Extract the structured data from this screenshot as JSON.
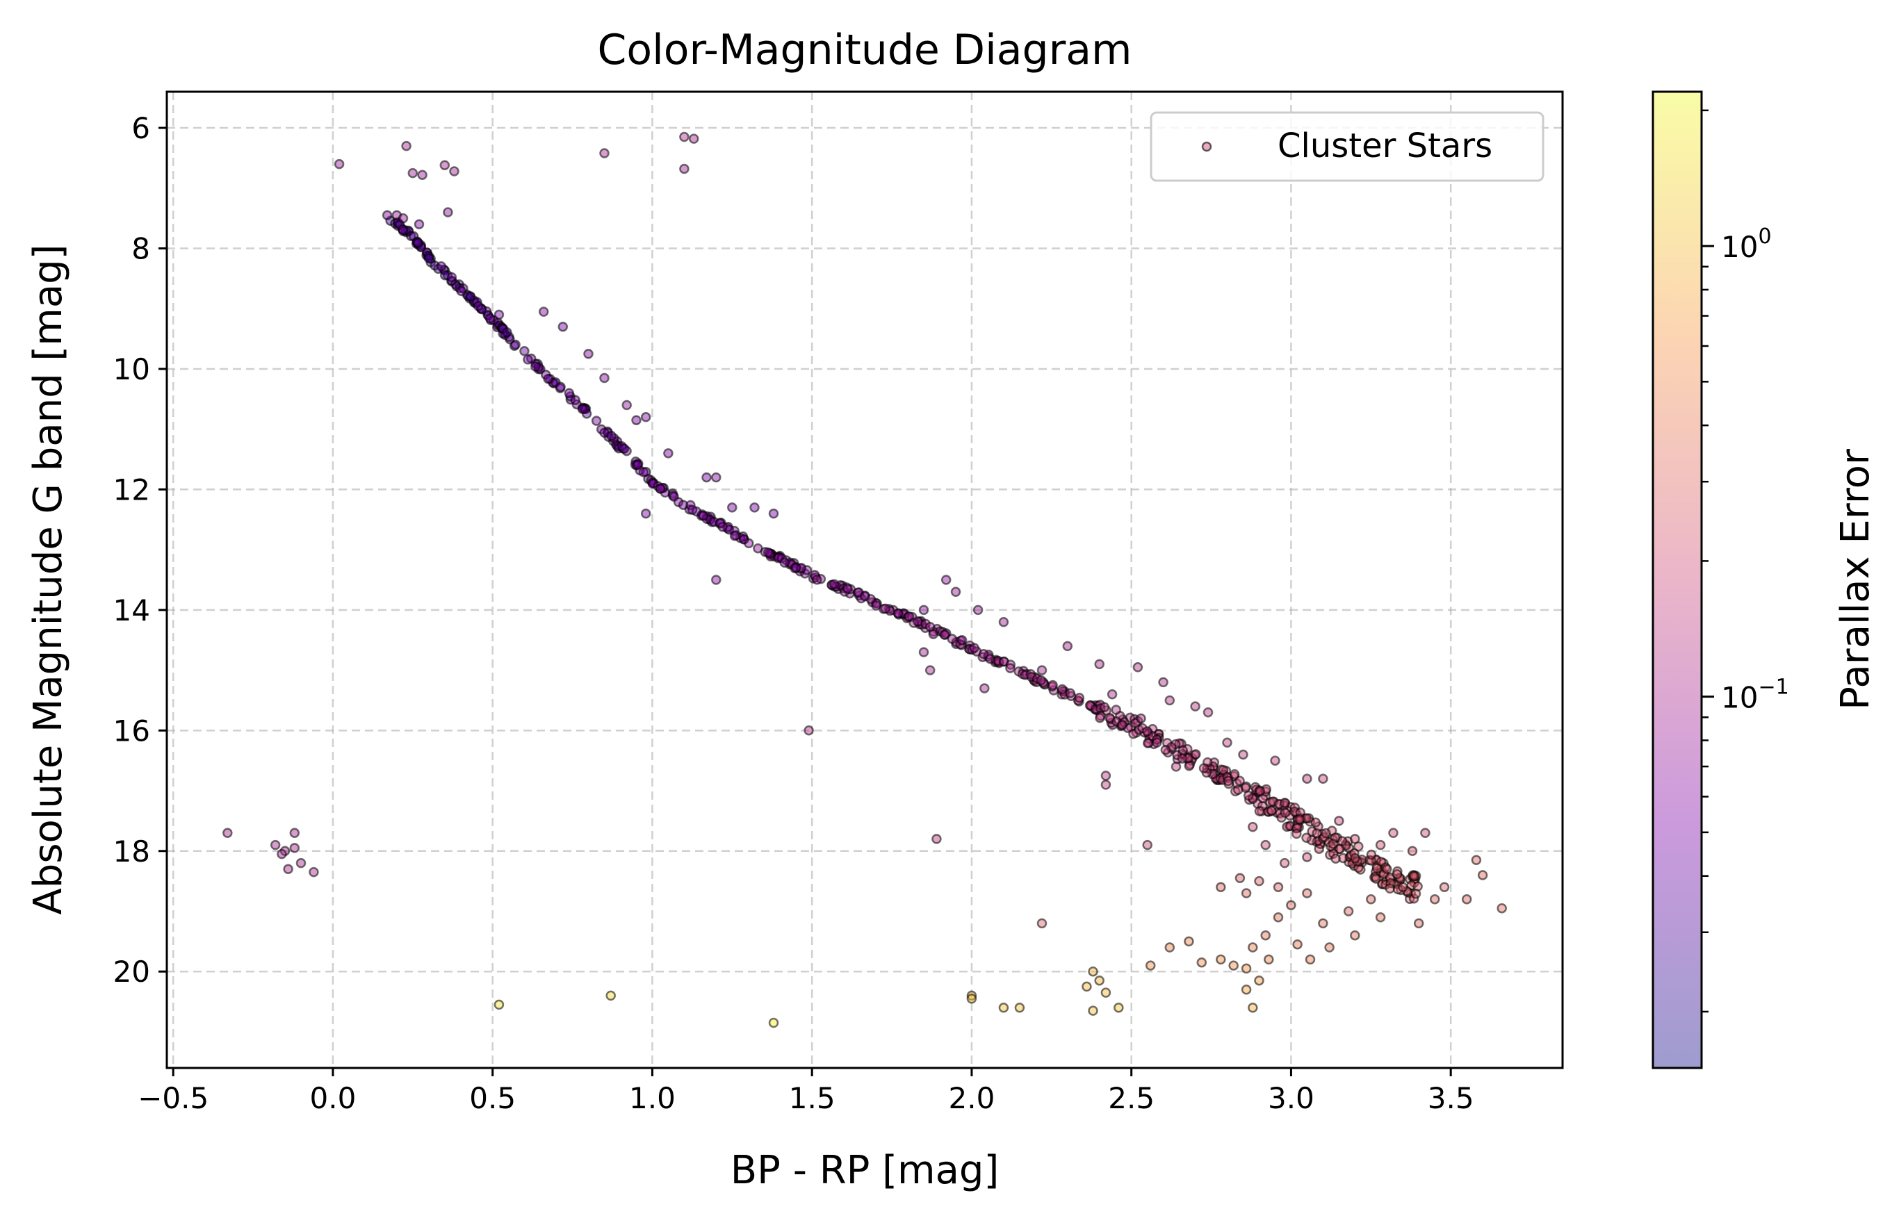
{
  "chart_data": {
    "type": "scatter",
    "title": "Color-Magnitude Diagram",
    "xlabel": "BP - RP [mag]",
    "ylabel": "Absolute Magnitude G band [mag]",
    "xlim": [
      -0.52,
      3.85
    ],
    "ylim": [
      21.6,
      5.4
    ],
    "y_inverted": true,
    "grid": true,
    "grid_style": "dashed",
    "xticks": [
      -0.5,
      0.0,
      0.5,
      1.0,
      1.5,
      2.0,
      2.5,
      3.0,
      3.5
    ],
    "xtick_labels": [
      "−0.5",
      "0.0",
      "0.5",
      "1.0",
      "1.5",
      "2.0",
      "2.5",
      "3.0",
      "3.5"
    ],
    "yticks": [
      6,
      8,
      10,
      12,
      14,
      16,
      18,
      20
    ],
    "ytick_labels": [
      "6",
      "8",
      "10",
      "12",
      "14",
      "16",
      "18",
      "20"
    ],
    "legend": {
      "position": "top-right",
      "entries": [
        "Cluster Stars"
      ]
    },
    "colorbar": {
      "label": "Parallax Error",
      "scale": "log",
      "range": [
        0.015,
        2.2
      ],
      "major_ticks": [
        {
          "value": 1.0,
          "base": "10",
          "exp": "0"
        },
        {
          "value": 0.1,
          "base": "10",
          "exp": "−1"
        }
      ],
      "minor_ticks": [
        0.02,
        0.03,
        0.04,
        0.05,
        0.06,
        0.07,
        0.08,
        0.09,
        0.2,
        0.3,
        0.4,
        0.5,
        0.6,
        0.7,
        0.8,
        0.9,
        2.0
      ],
      "colormap": [
        "#0d0887",
        "#7e03a8",
        "#cc4778",
        "#f89540",
        "#f0f921"
      ],
      "alpha": 0.4
    },
    "marker": {
      "edgecolor": "#000000",
      "alpha": 0.45
    },
    "series": [
      {
        "name": "Cluster Stars",
        "main_sequence": [
          [
            0.18,
            7.5
          ],
          [
            0.25,
            7.8
          ],
          [
            0.3,
            8.15
          ],
          [
            0.38,
            8.55
          ],
          [
            0.45,
            8.9
          ],
          [
            0.52,
            9.3
          ],
          [
            0.6,
            9.75
          ],
          [
            0.7,
            10.25
          ],
          [
            0.8,
            10.75
          ],
          [
            0.9,
            11.3
          ],
          [
            1.0,
            11.85
          ],
          [
            1.1,
            12.25
          ],
          [
            1.2,
            12.55
          ],
          [
            1.3,
            12.85
          ],
          [
            1.4,
            13.15
          ],
          [
            1.5,
            13.42
          ],
          [
            1.6,
            13.65
          ],
          [
            1.7,
            13.88
          ],
          [
            1.8,
            14.12
          ],
          [
            1.9,
            14.38
          ],
          [
            2.0,
            14.65
          ],
          [
            2.1,
            14.9
          ],
          [
            2.2,
            15.15
          ],
          [
            2.3,
            15.4
          ],
          [
            2.4,
            15.65
          ],
          [
            2.5,
            15.92
          ],
          [
            2.6,
            16.2
          ],
          [
            2.7,
            16.5
          ],
          [
            2.8,
            16.8
          ],
          [
            2.9,
            17.12
          ],
          [
            3.0,
            17.45
          ],
          [
            3.1,
            17.8
          ],
          [
            3.2,
            18.1
          ],
          [
            3.3,
            18.4
          ],
          [
            3.4,
            18.65
          ]
        ],
        "points": [
          [
            0.02,
            6.6,
            0.08
          ],
          [
            0.23,
            6.3,
            0.1
          ],
          [
            0.25,
            6.75,
            0.09
          ],
          [
            0.28,
            6.78,
            0.08
          ],
          [
            0.35,
            6.62,
            0.1
          ],
          [
            0.38,
            6.72,
            0.09
          ],
          [
            0.85,
            6.42,
            0.1
          ],
          [
            1.1,
            6.15,
            0.12
          ],
          [
            1.13,
            6.18,
            0.1
          ],
          [
            1.1,
            6.68,
            0.09
          ],
          [
            0.2,
            7.45,
            0.08
          ],
          [
            0.22,
            7.5,
            0.07
          ],
          [
            0.27,
            7.6,
            0.06
          ],
          [
            0.36,
            7.4,
            0.07
          ],
          [
            0.17,
            7.45,
            0.06
          ],
          [
            0.52,
            9.1,
            0.05
          ],
          [
            0.66,
            9.05,
            0.06
          ],
          [
            0.72,
            9.3,
            0.05
          ],
          [
            0.8,
            9.75,
            0.06
          ],
          [
            0.85,
            10.15,
            0.06
          ],
          [
            0.92,
            10.6,
            0.07
          ],
          [
            0.98,
            10.8,
            0.06
          ],
          [
            0.95,
            10.85,
            0.05
          ],
          [
            1.05,
            11.4,
            0.05
          ],
          [
            1.17,
            11.8,
            0.05
          ],
          [
            1.2,
            11.8,
            0.06
          ],
          [
            1.25,
            12.3,
            0.05
          ],
          [
            1.32,
            12.3,
            0.05
          ],
          [
            1.38,
            12.4,
            0.05
          ],
          [
            0.98,
            12.4,
            0.05
          ],
          [
            1.2,
            13.5,
            0.06
          ],
          [
            1.45,
            13.3,
            0.05
          ],
          [
            1.49,
            16.0,
            0.12
          ],
          [
            1.92,
            13.5,
            0.07
          ],
          [
            1.95,
            13.7,
            0.08
          ],
          [
            1.85,
            14.0,
            0.07
          ],
          [
            2.02,
            14.0,
            0.08
          ],
          [
            2.1,
            14.2,
            0.09
          ],
          [
            1.88,
            14.4,
            0.09
          ],
          [
            1.85,
            14.7,
            0.09
          ],
          [
            1.87,
            15.0,
            0.1
          ],
          [
            1.97,
            14.5,
            0.08
          ],
          [
            2.04,
            15.3,
            0.1
          ],
          [
            2.3,
            14.6,
            0.1
          ],
          [
            2.22,
            15.0,
            0.1
          ],
          [
            2.4,
            14.9,
            0.11
          ],
          [
            2.52,
            14.95,
            0.12
          ],
          [
            2.44,
            15.4,
            0.11
          ],
          [
            2.6,
            15.2,
            0.12
          ],
          [
            2.53,
            15.8,
            0.12
          ],
          [
            2.62,
            15.5,
            0.13
          ],
          [
            2.7,
            15.6,
            0.13
          ],
          [
            2.74,
            15.7,
            0.14
          ],
          [
            2.42,
            16.75,
            0.14
          ],
          [
            2.42,
            16.9,
            0.15
          ],
          [
            2.58,
            16.2,
            0.13
          ],
          [
            2.64,
            16.6,
            0.14
          ],
          [
            2.8,
            16.2,
            0.15
          ],
          [
            2.85,
            16.4,
            0.15
          ],
          [
            2.95,
            16.5,
            0.16
          ],
          [
            3.05,
            16.8,
            0.16
          ],
          [
            3.1,
            16.8,
            0.17
          ],
          [
            2.98,
            17.2,
            0.17
          ],
          [
            2.88,
            17.6,
            0.18
          ],
          [
            2.92,
            17.9,
            0.2
          ],
          [
            2.98,
            18.2,
            0.22
          ],
          [
            3.05,
            18.1,
            0.2
          ],
          [
            3.15,
            17.5,
            0.18
          ],
          [
            3.2,
            17.8,
            0.2
          ],
          [
            3.28,
            17.9,
            0.22
          ],
          [
            3.32,
            17.7,
            0.2
          ],
          [
            3.38,
            18.0,
            0.22
          ],
          [
            3.42,
            17.7,
            0.2
          ],
          [
            3.3,
            18.3,
            0.24
          ],
          [
            3.35,
            18.6,
            0.25
          ],
          [
            3.45,
            18.8,
            0.3
          ],
          [
            3.4,
            19.2,
            0.3
          ],
          [
            3.48,
            18.6,
            0.28
          ],
          [
            3.58,
            18.15,
            0.3
          ],
          [
            3.6,
            18.4,
            0.3
          ],
          [
            3.55,
            18.8,
            0.3
          ],
          [
            3.66,
            18.95,
            0.35
          ],
          [
            3.28,
            19.1,
            0.35
          ],
          [
            3.25,
            18.8,
            0.3
          ],
          [
            3.18,
            19.0,
            0.3
          ],
          [
            3.1,
            19.2,
            0.35
          ],
          [
            3.05,
            18.7,
            0.3
          ],
          [
            3.0,
            18.9,
            0.32
          ],
          [
            2.96,
            19.1,
            0.35
          ],
          [
            2.92,
            19.4,
            0.4
          ],
          [
            2.88,
            19.6,
            0.45
          ],
          [
            2.93,
            19.8,
            0.5
          ],
          [
            3.02,
            19.55,
            0.4
          ],
          [
            3.06,
            19.8,
            0.45
          ],
          [
            3.12,
            19.6,
            0.4
          ],
          [
            3.2,
            19.4,
            0.35
          ],
          [
            2.9,
            18.5,
            0.28
          ],
          [
            2.84,
            18.45,
            0.27
          ],
          [
            2.78,
            18.6,
            0.3
          ],
          [
            2.86,
            18.7,
            0.3
          ],
          [
            2.96,
            18.6,
            0.3
          ],
          [
            1.89,
            17.8,
            0.14
          ],
          [
            2.55,
            17.9,
            0.18
          ],
          [
            2.22,
            19.2,
            0.3
          ],
          [
            2.62,
            19.6,
            0.5
          ],
          [
            2.68,
            19.5,
            0.5
          ],
          [
            2.72,
            19.85,
            0.55
          ],
          [
            2.78,
            19.8,
            0.6
          ],
          [
            2.82,
            19.9,
            0.55
          ],
          [
            2.86,
            19.95,
            0.6
          ],
          [
            2.9,
            20.15,
            0.7
          ],
          [
            2.86,
            20.3,
            0.8
          ],
          [
            2.88,
            20.6,
            0.9
          ],
          [
            2.56,
            19.9,
            0.55
          ],
          [
            2.38,
            20.0,
            0.9
          ],
          [
            2.36,
            20.25,
            1.0
          ],
          [
            2.4,
            20.15,
            0.9
          ],
          [
            2.42,
            20.35,
            1.0
          ],
          [
            2.38,
            20.65,
            1.1
          ],
          [
            2.46,
            20.6,
            1.2
          ],
          [
            2.1,
            20.6,
            1.1
          ],
          [
            2.15,
            20.6,
            1.1
          ],
          [
            2.0,
            20.4,
            1.0
          ],
          [
            2.0,
            20.45,
            1.1
          ],
          [
            0.52,
            20.55,
            1.6
          ],
          [
            0.87,
            20.4,
            1.4
          ],
          [
            1.38,
            20.85,
            2.0
          ],
          [
            -0.33,
            17.7,
            0.1
          ],
          [
            -0.18,
            17.9,
            0.1
          ],
          [
            -0.15,
            18.0,
            0.1
          ],
          [
            -0.12,
            17.7,
            0.1
          ],
          [
            -0.12,
            17.95,
            0.1
          ],
          [
            -0.14,
            18.3,
            0.11
          ],
          [
            -0.1,
            18.2,
            0.1
          ],
          [
            -0.06,
            18.35,
            0.11
          ],
          [
            -0.16,
            18.05,
            0.1
          ]
        ]
      }
    ]
  }
}
